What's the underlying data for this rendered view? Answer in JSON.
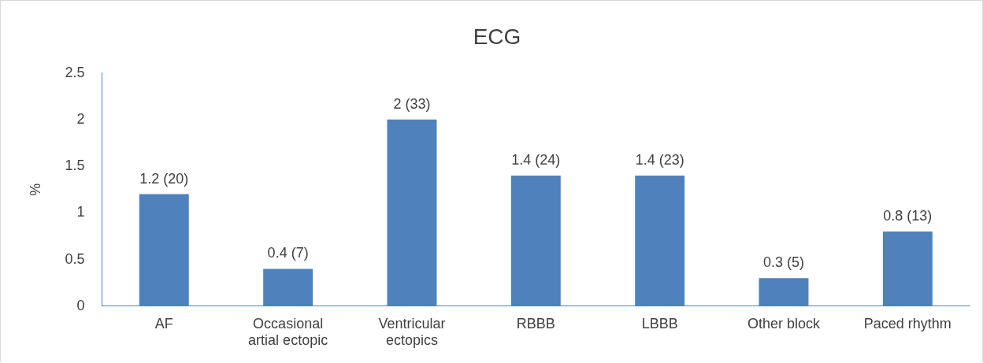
{
  "chart_data": {
    "type": "bar",
    "title": "ECG",
    "ylabel": "%",
    "categories": [
      "AF",
      "Occasional artial ectopic",
      "Ventricular ectopics",
      "RBBB",
      "LBBB",
      "Other block",
      "Paced rhythm"
    ],
    "values": [
      1.2,
      0.4,
      2,
      1.4,
      1.4,
      0.3,
      0.8
    ],
    "value_labels": [
      "1.2 (20)",
      "0.4 (7)",
      "2 (33)",
      "1.4 (24)",
      "1.4 (23)",
      "0.3 (5)",
      "0.8 (13)"
    ],
    "color": "#4f81bd",
    "ylim": [
      0,
      2.5
    ],
    "yticks": [
      0,
      0.5,
      1,
      1.5,
      2,
      2.5
    ],
    "grid": false,
    "legend": false
  }
}
